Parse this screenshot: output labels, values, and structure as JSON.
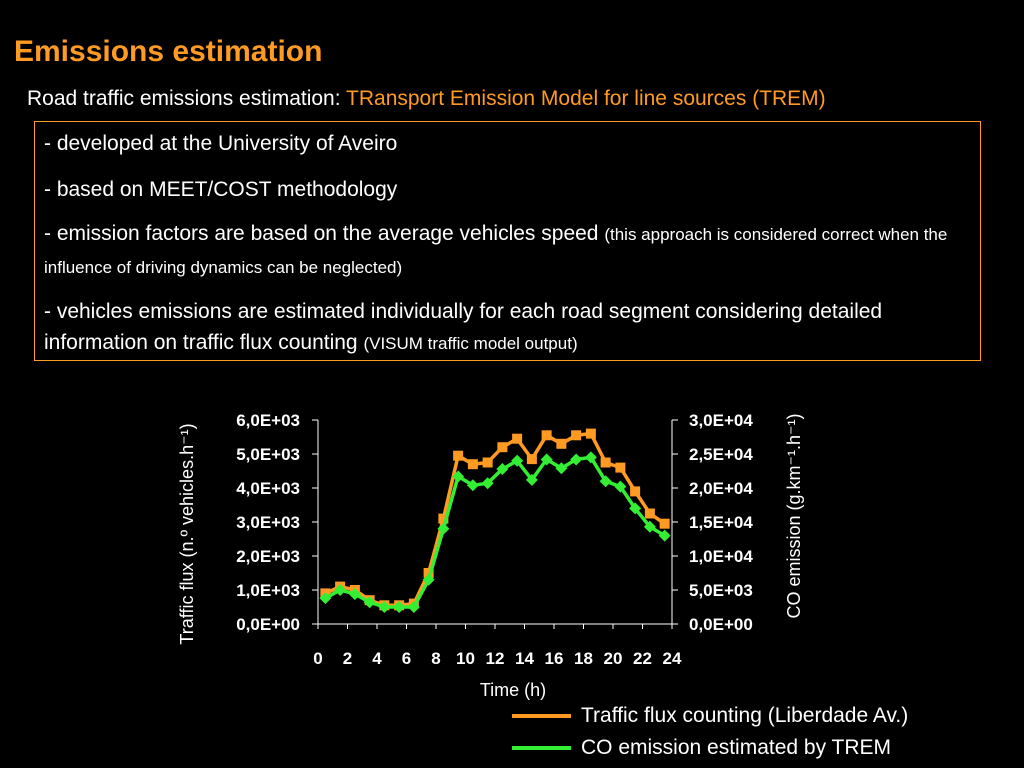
{
  "slide": {
    "title": "Emissions estimation",
    "subtitle_prefix": "Road traffic emissions estimation: ",
    "subtitle_accent": "TRansport Emission Model for line sources (TREM)",
    "bullets": [
      {
        "main": "- developed at the University of Aveiro",
        "note": ""
      },
      {
        "main": "- based on MEET/COST methodology",
        "note": ""
      },
      {
        "main": "- emission factors are based on the average vehicles speed ",
        "note": "(this approach is considered correct when the influence of driving dynamics can be neglected)"
      },
      {
        "main": "- vehicles emissions are estimated individually for each road segment considering detailed information on traffic flux counting ",
        "note": "(VISUM traffic model output)"
      }
    ]
  },
  "colors": {
    "accent": "#ff9a22",
    "background": "#000000",
    "series_flux": "#ff9a22",
    "series_co": "#33ee33"
  },
  "chart_data": {
    "type": "line",
    "xlabel": "Time (h)",
    "ylabel_left": "Traffic flux (n.º vehicles.h⁻¹)",
    "ylabel_right": "CO emission (g.km⁻¹.h⁻¹)",
    "x_ticks": [
      "0",
      "2",
      "4",
      "6",
      "8",
      "10",
      "12",
      "14",
      "16",
      "18",
      "20",
      "22",
      "24"
    ],
    "xlim": [
      0,
      24
    ],
    "y_left_ticks": [
      "0,0E+00",
      "1,0E+03",
      "2,0E+03",
      "3,0E+03",
      "4,0E+03",
      "5,0E+03",
      "6,0E+03"
    ],
    "y_left_lim": [
      0,
      6000
    ],
    "y_right_ticks": [
      "0,0E+00",
      "5,0E+03",
      "1,0E+04",
      "1,5E+04",
      "2,0E+04",
      "2,5E+04",
      "3,0E+04"
    ],
    "y_right_lim": [
      0,
      30000
    ],
    "x": [
      0.5,
      1.5,
      2.5,
      3.5,
      4.5,
      5.5,
      6.5,
      7.5,
      8.5,
      9.5,
      10.5,
      11.5,
      12.5,
      13.5,
      14.5,
      15.5,
      16.5,
      17.5,
      18.5,
      19.5,
      20.5,
      21.5,
      22.5,
      23.5
    ],
    "series": [
      {
        "name": "Traffic flux counting (Liberdade Av.)",
        "axis": "left",
        "marker": "square",
        "values": [
          900,
          1100,
          1000,
          700,
          550,
          550,
          600,
          1500,
          3100,
          4950,
          4700,
          4750,
          5200,
          5450,
          4850,
          5550,
          5300,
          5550,
          5600,
          4750,
          4600,
          3900,
          3250,
          2950
        ]
      },
      {
        "name": "CO emission estimated by TREM",
        "axis": "right",
        "marker": "diamond",
        "values": [
          3800,
          5000,
          4400,
          3200,
          2500,
          2500,
          2500,
          6500,
          14000,
          21700,
          20400,
          20700,
          22800,
          24000,
          21200,
          24200,
          22900,
          24200,
          24500,
          21000,
          20200,
          17000,
          14300,
          13000
        ]
      }
    ],
    "legend_position": "bottom-right",
    "grid": false
  }
}
